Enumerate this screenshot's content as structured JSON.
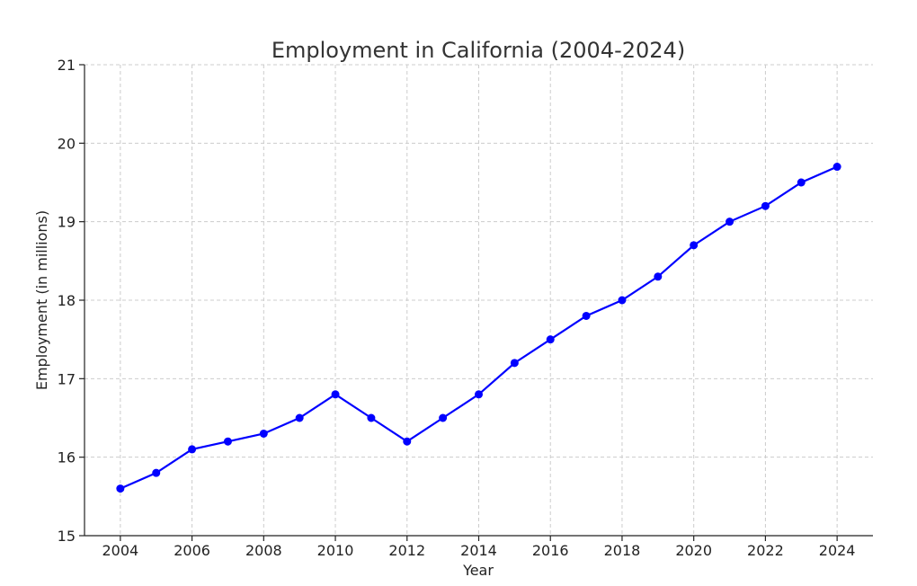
{
  "chart_data": {
    "type": "line",
    "title": "Employment in California (2004-2024)",
    "xlabel": "Year",
    "ylabel": "Employment (in millions)",
    "x": [
      2004,
      2005,
      2006,
      2007,
      2008,
      2009,
      2010,
      2011,
      2012,
      2013,
      2014,
      2015,
      2016,
      2017,
      2018,
      2019,
      2020,
      2021,
      2022,
      2023,
      2024
    ],
    "series": [
      {
        "color": "#0000ff",
        "values": [
          15.6,
          15.8,
          16.1,
          16.2,
          16.3,
          16.5,
          16.8,
          16.5,
          16.2,
          16.5,
          16.8,
          17.2,
          17.5,
          17.8,
          18.0,
          18.3,
          18.7,
          19.0,
          19.2,
          19.5,
          19.7
        ]
      }
    ],
    "xticks": [
      "2004",
      "2006",
      "2008",
      "2010",
      "2012",
      "2014",
      "2016",
      "2018",
      "2020",
      "2022",
      "2024"
    ],
    "yticks": [
      "15",
      "16",
      "17",
      "18",
      "19",
      "20",
      "21"
    ],
    "xlim": [
      2003,
      2025
    ],
    "ylim": [
      15,
      21
    ],
    "grid": true,
    "legend": "none"
  }
}
